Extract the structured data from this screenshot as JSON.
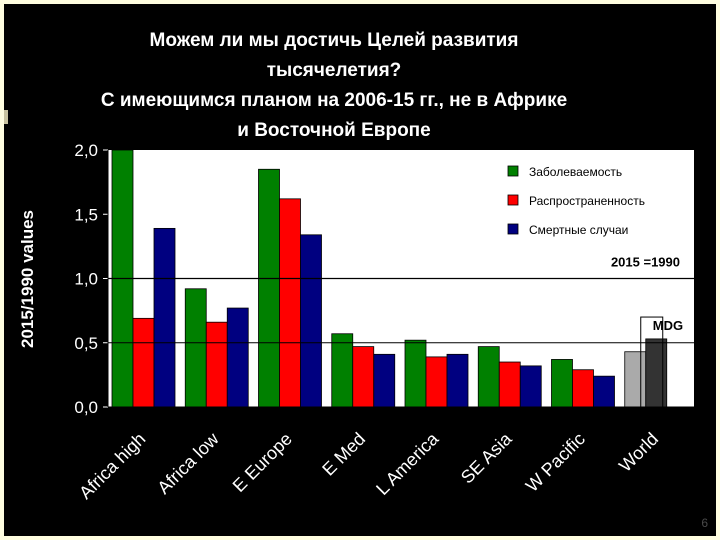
{
  "title_lines": [
    "Можем ли мы достичь Целей развития",
    "тысячелетия?",
    "С имеющимся планом на 2006-15 гг., не в Африке",
    "и Восточной Европе"
  ],
  "page_number": "6",
  "colors": {
    "slide_bg": "#000000",
    "plot_bg": "#ffffff",
    "border": "#fffde0",
    "series": [
      "#008000",
      "#ff0000",
      "#000080"
    ],
    "world_series": [
      "#aaaaaa",
      "#333333"
    ]
  },
  "chart_data": {
    "type": "bar",
    "ylabel": "2015/1990 values",
    "xlabel": "",
    "ylim": [
      0,
      2.0
    ],
    "yticks": [
      "0,0",
      "0,5",
      "1,0",
      "1,5",
      "2,0"
    ],
    "categories": [
      "Africa high",
      "Africa low",
      "E Europe",
      "E Med",
      "L America",
      "SE Asia",
      "W Pacific",
      "World"
    ],
    "series": [
      {
        "name": "Заболеваемость",
        "values": [
          2.0,
          0.92,
          1.85,
          0.57,
          0.52,
          0.47,
          0.37,
          0.43
        ]
      },
      {
        "name": "Распространенность",
        "values": [
          0.69,
          0.66,
          1.62,
          0.47,
          0.39,
          0.35,
          0.29,
          0.53
        ]
      },
      {
        "name": "Смертные случаи",
        "values": [
          1.39,
          0.77,
          1.34,
          0.41,
          0.41,
          0.32,
          0.24,
          null
        ]
      }
    ],
    "reference_line": {
      "value": 1.0,
      "label": "2015 =1990"
    },
    "mdg": {
      "value": 0.7,
      "label": "MDG"
    },
    "legend_position": "top-right",
    "grid": false
  }
}
